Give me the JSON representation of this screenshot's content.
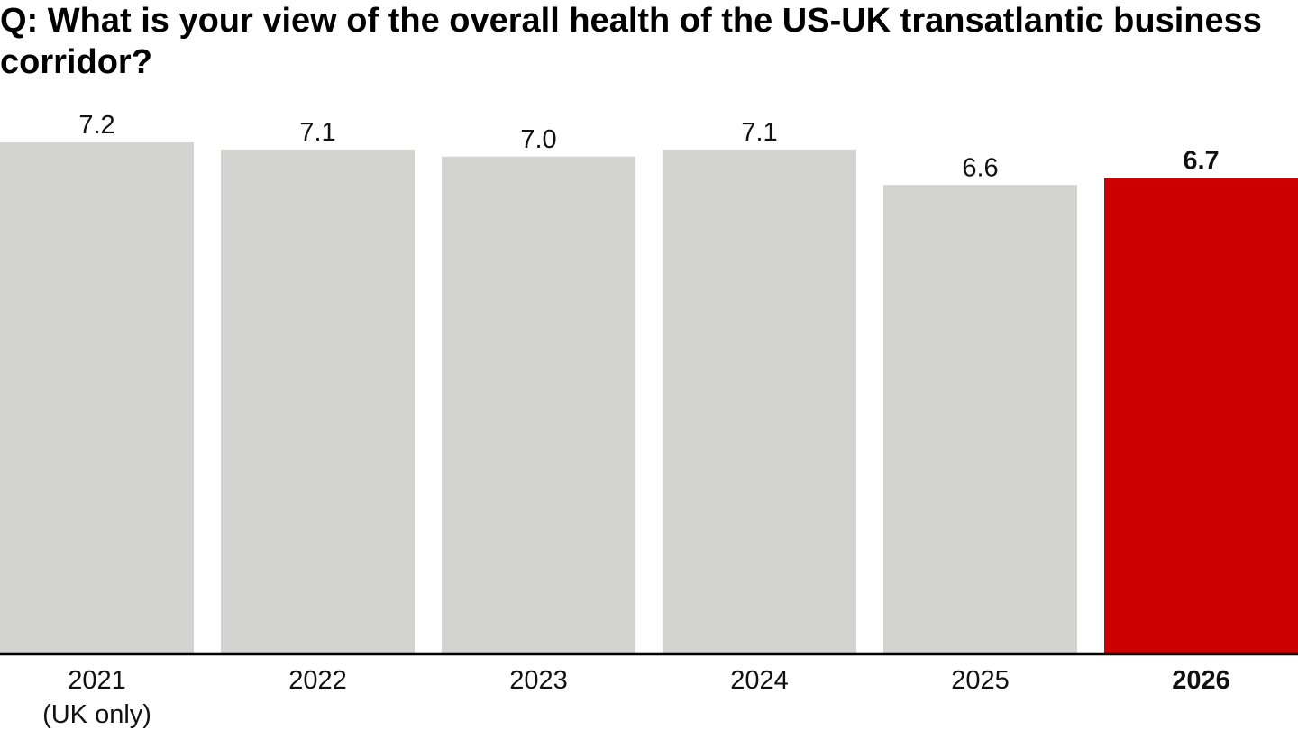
{
  "chart_data": {
    "type": "bar",
    "title": "Q: What is your view of the overall health of the US-UK transatlantic business corridor?",
    "categories": [
      [
        "2021",
        "(UK only)"
      ],
      [
        "2022"
      ],
      [
        "2023"
      ],
      [
        "2024"
      ],
      [
        "2025"
      ],
      [
        "2026"
      ]
    ],
    "values": [
      7.2,
      7.1,
      7.0,
      7.1,
      6.6,
      6.7
    ],
    "value_labels": [
      "7.2",
      "7.1",
      "7.0",
      "7.1",
      "6.6",
      "6.7"
    ],
    "highlight_index": 5,
    "colors": {
      "bar": "#d3d3d2",
      "highlight": "#cc0000",
      "axis": "#000000"
    },
    "xlabel": "",
    "ylabel": "",
    "ylim": [
      0,
      7.2
    ],
    "grid": false,
    "legend": "none"
  }
}
